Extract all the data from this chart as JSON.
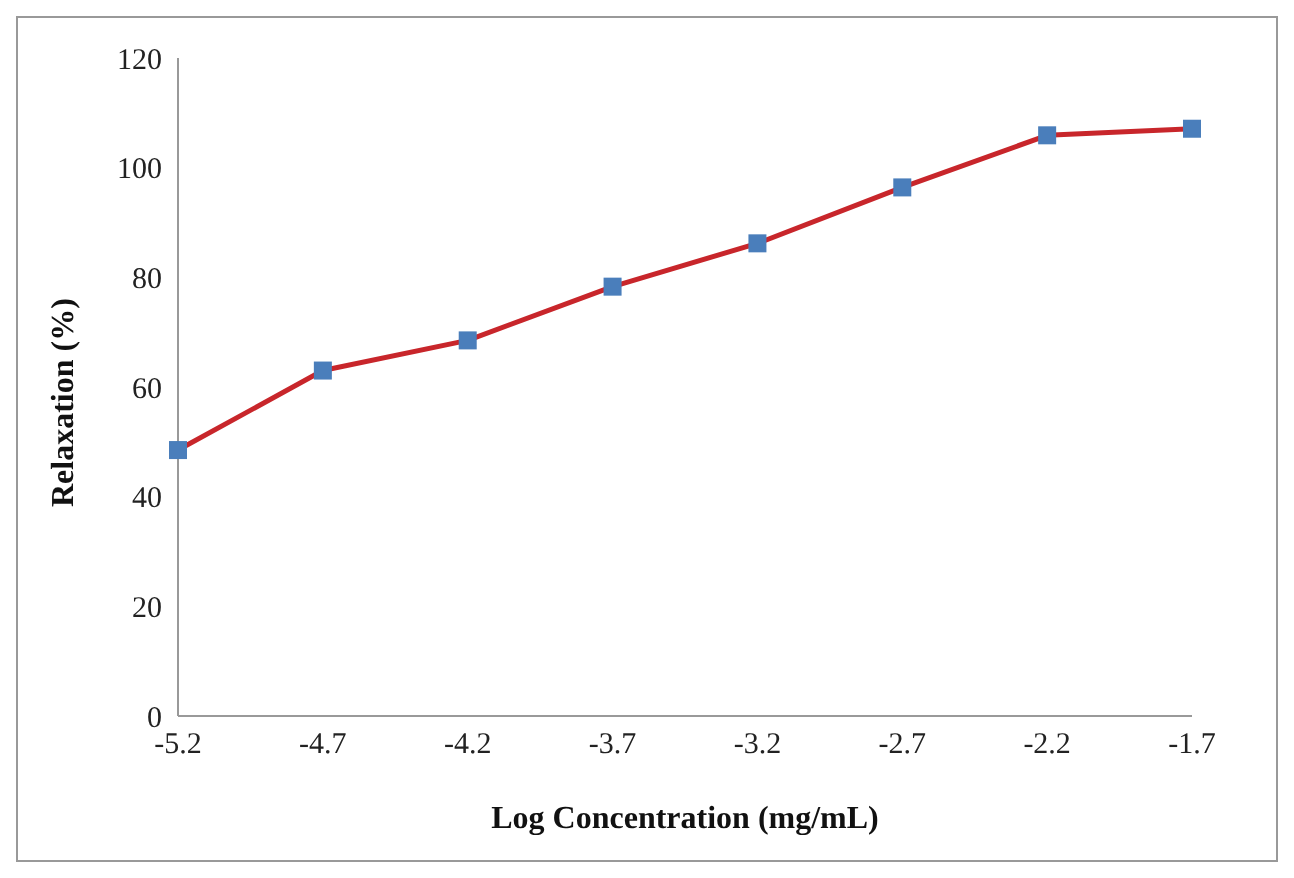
{
  "chart_data": {
    "type": "line",
    "xlabel": "Log Concentration  (mg/mL)",
    "ylabel": "Relaxation (%)",
    "categories": [
      "-5.2",
      "-4.7",
      "-4.2",
      "-3.7",
      "-3.2",
      "-2.7",
      "-2.2",
      "-1.7"
    ],
    "series": [
      {
        "color": "#c8262b",
        "colors": [
          "#4a7ebb",
          "#4a7ebb",
          "#4a7ebb",
          "#4a7ebb",
          "#4a7ebb",
          "#4a7ebb",
          "#4a7ebb",
          "#4a7ebb"
        ],
        "values": [
          48.5,
          63,
          68.5,
          78.3,
          86.2,
          96.4,
          105.9,
          107.1
        ]
      }
    ],
    "ylim": [
      0,
      120
    ],
    "yticks": [
      0,
      20,
      40,
      60,
      80,
      100,
      120
    ],
    "grid": false,
    "legend": false,
    "marker": "square",
    "line_style": "solid"
  }
}
